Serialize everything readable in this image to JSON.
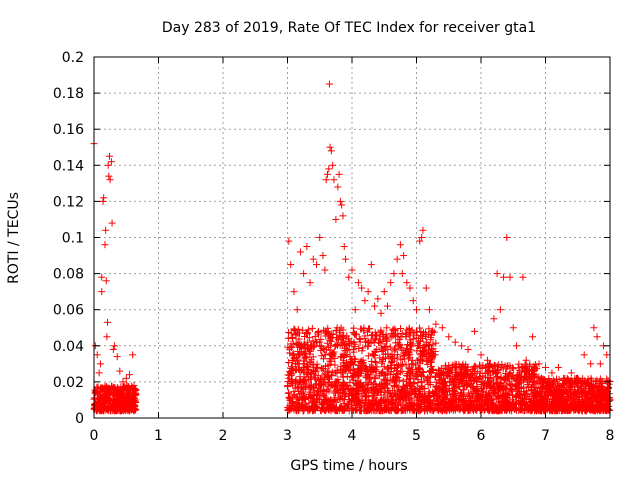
{
  "chart_data": {
    "type": "scatter",
    "title": "Day 283 of 2019, Rate Of TEC Index for receiver gta1",
    "xlabel": "GPS time / hours",
    "ylabel": "ROTI / TECUs",
    "xlim": [
      0,
      8
    ],
    "ylim": [
      0,
      0.2
    ],
    "x_ticks": [
      0,
      1,
      2,
      3,
      4,
      5,
      6,
      7,
      8
    ],
    "y_ticks": [
      0,
      0.02,
      0.04,
      0.06,
      0.08,
      0.1,
      0.12,
      0.14,
      0.16,
      0.18,
      0.2
    ],
    "grid": true,
    "marker": "+",
    "color": "#ff0000",
    "series": [
      {
        "name": "gta1",
        "points": [
          [
            0.0,
            0.152
          ],
          [
            0.02,
            0.04
          ],
          [
            0.05,
            0.035
          ],
          [
            0.08,
            0.025
          ],
          [
            0.1,
            0.03
          ],
          [
            0.12,
            0.078
          ],
          [
            0.12,
            0.07
          ],
          [
            0.14,
            0.12
          ],
          [
            0.15,
            0.122
          ],
          [
            0.17,
            0.096
          ],
          [
            0.18,
            0.104
          ],
          [
            0.19,
            0.076
          ],
          [
            0.2,
            0.045
          ],
          [
            0.21,
            0.053
          ],
          [
            0.22,
            0.14
          ],
          [
            0.23,
            0.134
          ],
          [
            0.24,
            0.145
          ],
          [
            0.25,
            0.132
          ],
          [
            0.27,
            0.142
          ],
          [
            0.28,
            0.108
          ],
          [
            0.3,
            0.038
          ],
          [
            0.32,
            0.04
          ],
          [
            0.36,
            0.034
          ],
          [
            0.4,
            0.026
          ],
          [
            0.45,
            0.02
          ],
          [
            0.5,
            0.022
          ],
          [
            0.55,
            0.024
          ],
          [
            0.6,
            0.035
          ],
          [
            0.62,
            0.018
          ],
          [
            3.02,
            0.098
          ],
          [
            3.05,
            0.085
          ],
          [
            3.1,
            0.07
          ],
          [
            3.15,
            0.06
          ],
          [
            3.2,
            0.092
          ],
          [
            3.25,
            0.08
          ],
          [
            3.3,
            0.095
          ],
          [
            3.35,
            0.075
          ],
          [
            3.4,
            0.088
          ],
          [
            3.45,
            0.085
          ],
          [
            3.5,
            0.1
          ],
          [
            3.55,
            0.09
          ],
          [
            3.58,
            0.082
          ],
          [
            3.6,
            0.132
          ],
          [
            3.62,
            0.135
          ],
          [
            3.64,
            0.138
          ],
          [
            3.65,
            0.185
          ],
          [
            3.66,
            0.15
          ],
          [
            3.68,
            0.148
          ],
          [
            3.7,
            0.14
          ],
          [
            3.72,
            0.132
          ],
          [
            3.75,
            0.11
          ],
          [
            3.78,
            0.128
          ],
          [
            3.8,
            0.135
          ],
          [
            3.82,
            0.12
          ],
          [
            3.84,
            0.118
          ],
          [
            3.86,
            0.112
          ],
          [
            3.88,
            0.095
          ],
          [
            3.9,
            0.088
          ],
          [
            3.95,
            0.078
          ],
          [
            4.0,
            0.082
          ],
          [
            4.05,
            0.06
          ],
          [
            4.1,
            0.075
          ],
          [
            4.15,
            0.072
          ],
          [
            4.2,
            0.065
          ],
          [
            4.25,
            0.07
          ],
          [
            4.3,
            0.085
          ],
          [
            4.35,
            0.062
          ],
          [
            4.4,
            0.066
          ],
          [
            4.45,
            0.058
          ],
          [
            4.5,
            0.07
          ],
          [
            4.55,
            0.062
          ],
          [
            4.6,
            0.075
          ],
          [
            4.65,
            0.08
          ],
          [
            4.7,
            0.088
          ],
          [
            4.75,
            0.096
          ],
          [
            4.78,
            0.08
          ],
          [
            4.8,
            0.09
          ],
          [
            4.85,
            0.075
          ],
          [
            4.9,
            0.072
          ],
          [
            4.95,
            0.065
          ],
          [
            5.0,
            0.06
          ],
          [
            5.05,
            0.098
          ],
          [
            5.08,
            0.1
          ],
          [
            5.1,
            0.104
          ],
          [
            5.15,
            0.072
          ],
          [
            5.2,
            0.06
          ],
          [
            5.3,
            0.052
          ],
          [
            5.4,
            0.05
          ],
          [
            5.5,
            0.045
          ],
          [
            5.6,
            0.042
          ],
          [
            5.7,
            0.04
          ],
          [
            5.8,
            0.038
          ],
          [
            5.9,
            0.048
          ],
          [
            6.0,
            0.035
          ],
          [
            6.1,
            0.032
          ],
          [
            6.2,
            0.055
          ],
          [
            6.25,
            0.08
          ],
          [
            6.3,
            0.06
          ],
          [
            6.35,
            0.078
          ],
          [
            6.4,
            0.1
          ],
          [
            6.45,
            0.078
          ],
          [
            6.5,
            0.05
          ],
          [
            6.55,
            0.04
          ],
          [
            6.65,
            0.078
          ],
          [
            6.7,
            0.032
          ],
          [
            6.8,
            0.045
          ],
          [
            6.9,
            0.03
          ],
          [
            7.0,
            0.028
          ],
          [
            7.1,
            0.025
          ],
          [
            7.2,
            0.028
          ],
          [
            7.3,
            0.022
          ],
          [
            7.4,
            0.025
          ],
          [
            7.5,
            0.022
          ],
          [
            7.6,
            0.035
          ],
          [
            7.7,
            0.03
          ],
          [
            7.75,
            0.05
          ],
          [
            7.8,
            0.045
          ],
          [
            7.85,
            0.03
          ],
          [
            7.9,
            0.04
          ],
          [
            7.95,
            0.035
          ]
        ]
      }
    ]
  }
}
